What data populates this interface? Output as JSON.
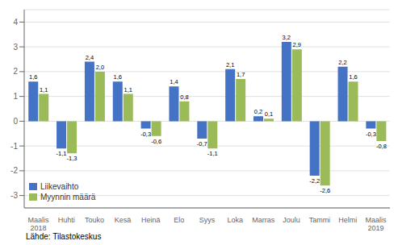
{
  "chart_data": {
    "type": "bar",
    "categories": [
      "Maalis\n2018",
      "Huhti",
      "Touko",
      "Kesä",
      "Heinä",
      "Elo",
      "Syys",
      "Loka",
      "Marras",
      "Joulu",
      "Tammi",
      "Helmi",
      "Maalis\n2019"
    ],
    "series": [
      {
        "name": "Liikevaihto",
        "color": "#4472C4",
        "values": [
          1.6,
          -1.1,
          2.4,
          1.6,
          -0.3,
          1.4,
          -0.7,
          2.1,
          0.2,
          3.2,
          -2.2,
          2.2,
          -0.3
        ],
        "value_labels": [
          "1,6",
          "-1,1",
          "2,4",
          "1,6",
          "-0,3",
          "1,4",
          "-0,7",
          "2,1",
          "0,2",
          "3,2",
          "-2,2",
          "2,2",
          "-0,3"
        ]
      },
      {
        "name": "Myynnin määrä",
        "color": "#9BBB59",
        "values": [
          1.1,
          -1.3,
          2.0,
          1.1,
          -0.6,
          0.8,
          -1.1,
          1.7,
          0.1,
          2.9,
          -2.6,
          1.6,
          -0.8
        ],
        "value_labels": [
          "1,1",
          "-1,3",
          "2,0",
          "1,1",
          "-0,6",
          "0,8",
          "-1,1",
          "1,7",
          "0,1",
          "2,9",
          "-2,6",
          "1,6",
          "-0,8"
        ]
      }
    ],
    "ylim": [
      -3.5,
      4.5
    ],
    "yticks": [
      -3,
      -2,
      -1,
      0,
      1,
      2,
      3,
      4
    ],
    "grid": true,
    "legend": "lower left",
    "data_labels": true,
    "annotations": [
      "Lähde: Tilastokeskus"
    ]
  }
}
